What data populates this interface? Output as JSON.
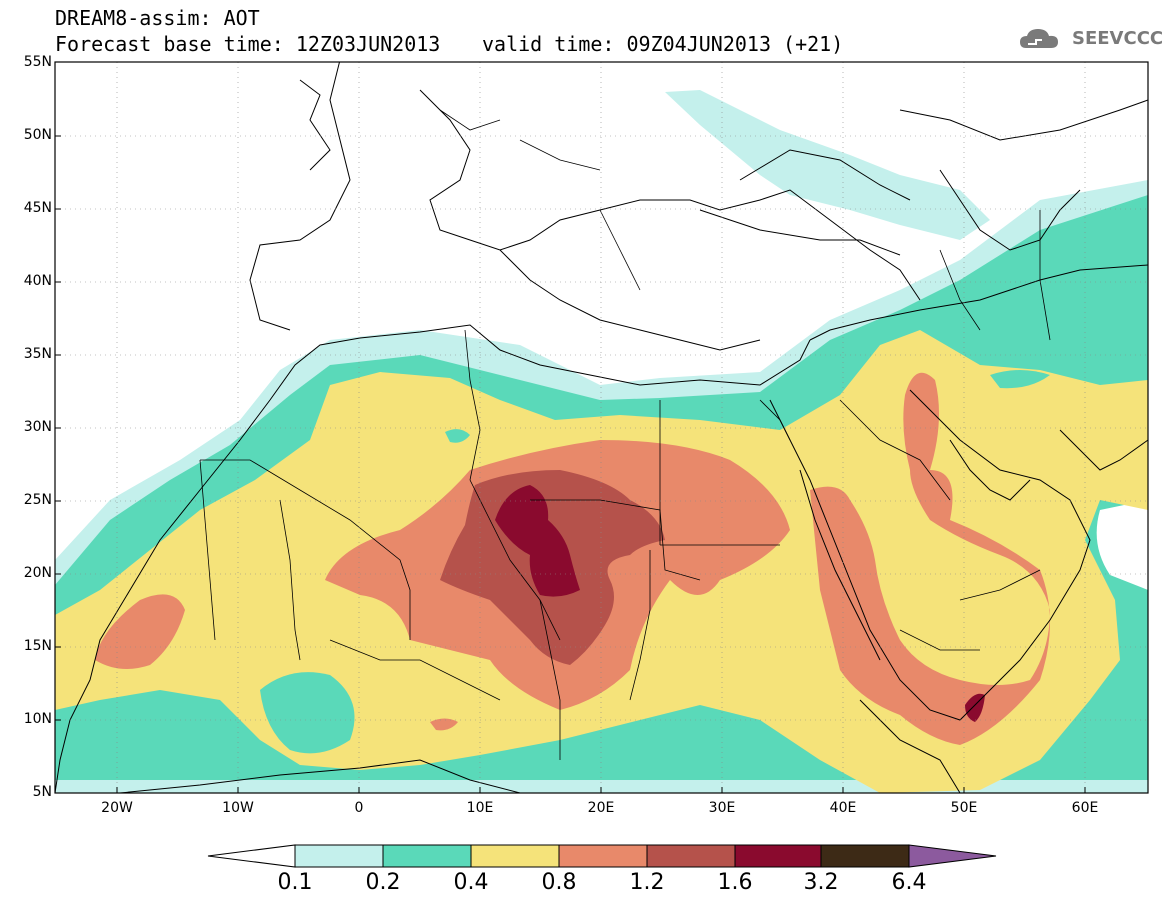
{
  "header": {
    "model_line": "DREAM8-assim: AOT",
    "base_time": "Forecast base time: 12Z03JUN2013",
    "valid_time": "valid time: 09Z04JUN2013 (+21)",
    "logo_text": "SEEVCCC"
  },
  "axes": {
    "lat_ticks": [
      "55N",
      "50N",
      "45N",
      "40N",
      "35N",
      "30N",
      "25N",
      "20N",
      "15N",
      "10N",
      "5N"
    ],
    "lon_ticks": [
      "20W",
      "10W",
      "0",
      "10E",
      "20E",
      "30E",
      "40E",
      "50E",
      "60E"
    ]
  },
  "colorbar": {
    "labels": [
      "0.1",
      "0.2",
      "0.4",
      "0.8",
      "1.2",
      "1.6",
      "3.2",
      "6.4"
    ],
    "colors": [
      "#ffffff",
      "#c4f0ec",
      "#5ad9b9",
      "#f5e37a",
      "#e8896a",
      "#b5524b",
      "#8a0a2e",
      "#3d2a16",
      "#8c5a9e"
    ]
  },
  "legend_colors": {
    "level_0.1": "#c4f0ec",
    "level_0.2": "#5ad9b9",
    "level_0.4": "#f5e37a",
    "level_0.8": "#e8896a",
    "level_1.2": "#b5524b",
    "level_1.6": "#8a0a2e"
  }
}
